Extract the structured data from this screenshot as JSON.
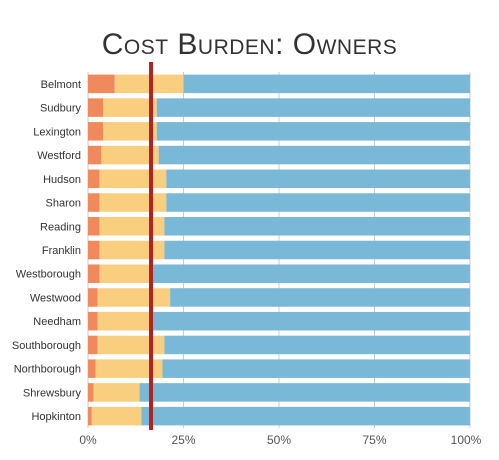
{
  "chart_data": {
    "type": "bar",
    "orientation": "horizontal",
    "stacked": true,
    "title": "Cost Burden: Owners",
    "categories": [
      "Belmont",
      "Sudbury",
      "Lexington",
      "Westford",
      "Hudson",
      "Sharon",
      "Reading",
      "Franklin",
      "Westborough",
      "Westwood",
      "Needham",
      "Southborough",
      "Northborough",
      "Shrewsbury",
      "Hopkinton"
    ],
    "series": [
      {
        "color": "#f08a5d",
        "values": [
          7,
          4,
          4,
          3.5,
          3,
          3,
          3,
          3,
          3,
          2.5,
          2.5,
          2.5,
          2,
          1.5,
          1
        ]
      },
      {
        "color": "#f9cf7f",
        "values": [
          18,
          14,
          14,
          15,
          17.5,
          17.5,
          17,
          17,
          14,
          19,
          14.5,
          17.5,
          17.5,
          12,
          13
        ]
      },
      {
        "color": "#7ab8d8",
        "values": [
          75,
          82,
          82,
          81.5,
          79.5,
          79.5,
          80,
          80,
          83,
          78.5,
          83,
          80,
          80.5,
          86.5,
          86
        ]
      }
    ],
    "xlim": [
      0,
      100
    ],
    "xticks": [
      "0%",
      "25%",
      "50%",
      "75%",
      "100%"
    ],
    "reference_line": {
      "value": 16.5,
      "color": "#b22222"
    },
    "grid": true
  }
}
